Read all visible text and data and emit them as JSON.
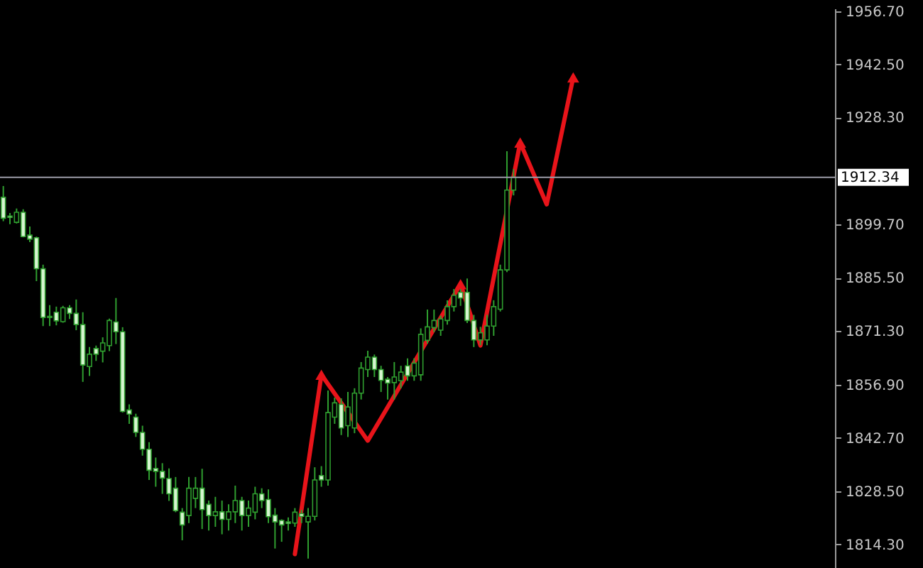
{
  "chart_data": {
    "type": "candlestick",
    "categories": [
      null,
      null,
      null,
      null,
      null,
      null,
      null,
      null,
      null,
      null,
      null,
      null,
      null,
      null,
      null,
      null,
      null,
      null,
      null,
      null,
      null,
      null,
      null,
      null,
      null,
      null,
      null,
      null,
      null,
      null,
      null,
      null,
      null,
      null,
      null,
      null,
      null,
      null,
      null,
      null,
      null,
      null,
      null,
      null,
      null,
      null,
      null,
      null,
      null,
      null,
      null,
      null,
      null,
      null,
      null,
      null,
      null,
      null,
      null,
      null,
      null,
      null,
      null,
      null,
      null,
      null,
      null,
      null,
      null,
      null,
      null,
      null,
      null,
      null,
      null,
      null,
      null,
      null,
      null,
      null,
      null,
      null,
      null,
      null,
      null,
      null,
      null,
      null,
      null,
      null,
      null,
      null,
      null,
      null,
      null,
      null,
      null,
      null,
      null,
      null,
      null,
      null,
      null,
      null,
      null,
      null,
      null,
      null,
      null,
      null,
      null,
      null,
      null,
      null,
      null,
      null,
      null,
      null,
      null,
      null,
      null,
      null,
      null,
      null,
      null,
      null
    ],
    "ohlc": [
      [
        1907.0,
        1910.0,
        1900.6,
        1901.4
      ],
      [
        1902.0,
        1902.8,
        1899.8,
        1901.6
      ],
      [
        1900.3,
        1904.0,
        1900.0,
        1903.0
      ],
      [
        1903.0,
        1903.8,
        1896.3,
        1896.5
      ],
      [
        1896.9,
        1899.2,
        1895.0,
        1895.8
      ],
      [
        1896.2,
        1896.5,
        1884.6,
        1887.9
      ],
      [
        1887.9,
        1889.0,
        1872.6,
        1874.9
      ],
      [
        1875.2,
        1878.2,
        1872.6,
        1874.9
      ],
      [
        1876.3,
        1877.8,
        1872.8,
        1874.0
      ],
      [
        1873.8,
        1878.0,
        1873.5,
        1877.5
      ],
      [
        1877.5,
        1878.2,
        1874.5,
        1876.0
      ],
      [
        1876.0,
        1879.7,
        1871.5,
        1873.0
      ],
      [
        1873.0,
        1876.3,
        1857.7,
        1862.2
      ],
      [
        1861.8,
        1867.0,
        1859.3,
        1865.1
      ],
      [
        1866.6,
        1867.4,
        1863.3,
        1865.1
      ],
      [
        1865.9,
        1869.6,
        1862.9,
        1868.1
      ],
      [
        1867.4,
        1874.6,
        1865.9,
        1874.1
      ],
      [
        1873.7,
        1880.1,
        1867.8,
        1871.1
      ],
      [
        1871.1,
        1872.3,
        1849.5,
        1849.8
      ],
      [
        1850.2,
        1851.7,
        1846.5,
        1849.1
      ],
      [
        1848.3,
        1849.2,
        1843.0,
        1844.2
      ],
      [
        1844.2,
        1846.0,
        1838.0,
        1839.7
      ],
      [
        1839.7,
        1841.6,
        1831.5,
        1834.1
      ],
      [
        1834.6,
        1837.5,
        1829.7,
        1833.8
      ],
      [
        1833.8,
        1836.0,
        1827.8,
        1832.0
      ],
      [
        1831.9,
        1834.6,
        1825.9,
        1827.8
      ],
      [
        1829.3,
        1832.3,
        1822.9,
        1823.3
      ],
      [
        1822.9,
        1824.0,
        1815.4,
        1819.5
      ],
      [
        1822.0,
        1832.3,
        1820.0,
        1829.3
      ],
      [
        1826.6,
        1832.3,
        1824.0,
        1829.3
      ],
      [
        1829.3,
        1834.5,
        1818.4,
        1823.6
      ],
      [
        1825.0,
        1826.0,
        1818.0,
        1822.0
      ],
      [
        1822.0,
        1827.0,
        1819.0,
        1823.0
      ],
      [
        1823.0,
        1826.0,
        1817.0,
        1821.0
      ],
      [
        1821.0,
        1825.0,
        1818.0,
        1823.0
      ],
      [
        1823.0,
        1830.0,
        1820.0,
        1826.0
      ],
      [
        1826.0,
        1827.0,
        1818.0,
        1822.0
      ],
      [
        1822.0,
        1826.0,
        1819.0,
        1824.0
      ],
      [
        1822.9,
        1829.7,
        1821.0,
        1827.8
      ],
      [
        1827.8,
        1829.3,
        1824.0,
        1826.0
      ],
      [
        1826.3,
        1829.0,
        1820.0,
        1821.7
      ],
      [
        1822.1,
        1824.0,
        1813.2,
        1820.3
      ],
      [
        1820.7,
        1821.0,
        1815.0,
        1819.5
      ],
      [
        1820.3,
        1821.5,
        1818.0,
        1819.9
      ],
      [
        1820.0,
        1824.0,
        1819.0,
        1822.9
      ],
      [
        1822.5,
        1823.5,
        1820.0,
        1821.8
      ],
      [
        1820.3,
        1824.0,
        1810.5,
        1821.8
      ],
      [
        1821.8,
        1834.9,
        1820.7,
        1831.5
      ],
      [
        1832.7,
        1835.2,
        1829.7,
        1831.5
      ],
      [
        1831.5,
        1855.4,
        1830.0,
        1849.5
      ],
      [
        1848.3,
        1853.5,
        1846.5,
        1852.1
      ],
      [
        1851.7,
        1853.3,
        1843.5,
        1845.4
      ],
      [
        1846.0,
        1855.0,
        1843.0,
        1851.0
      ],
      [
        1845.4,
        1856.0,
        1844.0,
        1854.7
      ],
      [
        1854.7,
        1863.0,
        1853.0,
        1861.4
      ],
      [
        1861.0,
        1866.0,
        1859.0,
        1864.3
      ],
      [
        1864.3,
        1865.0,
        1859.0,
        1861.0
      ],
      [
        1861.0,
        1862.0,
        1855.0,
        1858.1
      ],
      [
        1858.4,
        1859.0,
        1853.0,
        1857.4
      ],
      [
        1857.5,
        1863.0,
        1853.0,
        1859.0
      ],
      [
        1858.0,
        1862.0,
        1856.0,
        1860.3
      ],
      [
        1862.0,
        1864.0,
        1858.0,
        1859.3
      ],
      [
        1859.3,
        1864.0,
        1858.0,
        1862.7
      ],
      [
        1859.6,
        1872.0,
        1858.0,
        1870.4
      ],
      [
        1868.8,
        1877.0,
        1867.9,
        1872.4
      ],
      [
        1872.2,
        1877.0,
        1871.0,
        1874.1
      ],
      [
        1871.5,
        1875.4,
        1870.0,
        1874.5
      ],
      [
        1874.1,
        1879.5,
        1873.0,
        1877.8
      ],
      [
        1877.8,
        1882.5,
        1876.5,
        1880.8
      ],
      [
        1881.6,
        1882.5,
        1878.0,
        1880.1
      ],
      [
        1881.6,
        1885.3,
        1873.4,
        1874.1
      ],
      [
        1874.1,
        1875.6,
        1867.0,
        1868.9
      ],
      [
        1868.9,
        1872.4,
        1867.5,
        1870.8
      ],
      [
        1868.9,
        1875.6,
        1867.5,
        1872.6
      ],
      [
        1872.6,
        1879.5,
        1870.0,
        1877.8
      ],
      [
        1877.1,
        1889.0,
        1876.5,
        1887.6
      ],
      [
        1887.6,
        1919.3,
        1887.0,
        1908.9
      ],
      [
        1908.9,
        1914.5,
        1907.5,
        1912.34
      ],
      null,
      null,
      null,
      null,
      null,
      null,
      null,
      null,
      null,
      null,
      null,
      null,
      null,
      null,
      null,
      null,
      null,
      null,
      null,
      null,
      null,
      null,
      null,
      null,
      null,
      null,
      null,
      null,
      null,
      null,
      null,
      null,
      null,
      null,
      null,
      null,
      null,
      null,
      null,
      null,
      null,
      null,
      null,
      null,
      null,
      null,
      null,
      null
    ],
    "series": [
      {
        "type": "line",
        "color": "#e8141a",
        "values": [
          null,
          null,
          null,
          null,
          null,
          null,
          null,
          null,
          null,
          null,
          null,
          null,
          null,
          null,
          null,
          null,
          null,
          null,
          null,
          null,
          null,
          null,
          null,
          null,
          null,
          null,
          null,
          null,
          null,
          null,
          null,
          null,
          null,
          null,
          null,
          null,
          null,
          null,
          null,
          null,
          null,
          null,
          null,
          null,
          1811.7,
          null,
          null,
          null,
          1859.6,
          null,
          null,
          null,
          null,
          null,
          null,
          1842.0,
          null,
          null,
          null,
          null,
          null,
          null,
          null,
          null,
          null,
          null,
          null,
          null,
          null,
          1883.8,
          null,
          null,
          1867.4,
          null,
          null,
          null,
          null,
          null,
          1921.6,
          null,
          null,
          null,
          1905.1,
          null,
          null,
          null,
          1939.0,
          null,
          null,
          null,
          null,
          null,
          null,
          null,
          null,
          null,
          null,
          null,
          null,
          null,
          null,
          null,
          null,
          null,
          null,
          null,
          null,
          null,
          null,
          null,
          null,
          null,
          null,
          null,
          null,
          null,
          null,
          null,
          null,
          null,
          null,
          null,
          null,
          null,
          null,
          null
        ]
      }
    ],
    "ylim": [
      1808.0,
      1957.4
    ],
    "yticks": [
      {
        "value": 1814.3,
        "label": "1814.30"
      },
      {
        "value": 1828.5,
        "label": "1828.50"
      },
      {
        "value": 1842.7,
        "label": "1842.70"
      },
      {
        "value": 1856.9,
        "label": "1856.90"
      },
      {
        "value": 1871.3,
        "label": "1871.30"
      },
      {
        "value": 1885.5,
        "label": "1885.50"
      },
      {
        "value": 1899.7,
        "label": "1899.70"
      },
      {
        "value": 1928.3,
        "label": "1928.30"
      },
      {
        "value": 1942.5,
        "label": "1942.50"
      },
      {
        "value": 1956.7,
        "label": "1956.70"
      }
    ],
    "ref_lines": [
      {
        "axis": "y",
        "value": 1912.34,
        "label": "1912.34",
        "color": "#9a9aa6"
      }
    ],
    "tick_labels": "y"
  }
}
